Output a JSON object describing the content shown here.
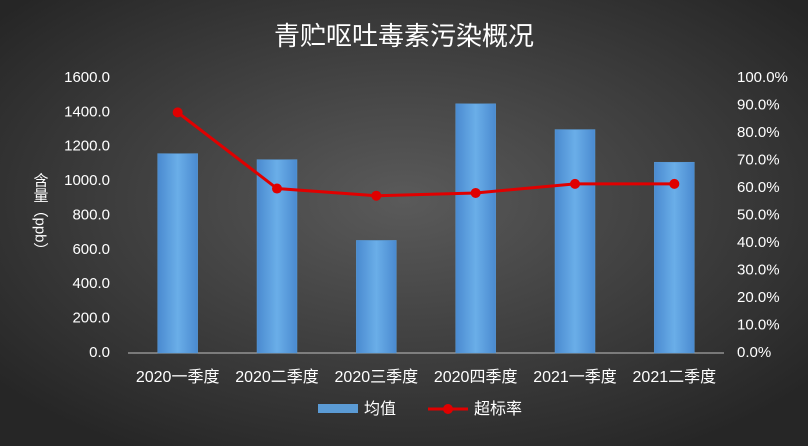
{
  "chart_data": {
    "type": "bar-line",
    "title": "青贮呕吐毒素污染概况",
    "y_label": "含量（ppb）",
    "categories": [
      "2020一季度",
      "2020二季度",
      "2020三季度",
      "2020四季度",
      "2021一季度",
      "2021二季度"
    ],
    "series": [
      {
        "name": "均值",
        "type": "bar",
        "color": "#5b9bd5",
        "values": [
          1160,
          1125,
          655,
          1450,
          1300,
          1110
        ]
      },
      {
        "name": "超标率",
        "type": "line",
        "axis": "y2",
        "color": "#e00000",
        "values": [
          87.5,
          59.8,
          57.2,
          58.2,
          61.5,
          61.5
        ]
      }
    ],
    "ylim": [
      0,
      1600
    ],
    "yticks": [
      {
        "value": 0,
        "label": "0.0"
      },
      {
        "value": 200,
        "label": "200.0"
      },
      {
        "value": 400,
        "label": "400.0"
      },
      {
        "value": 600,
        "label": "600.0"
      },
      {
        "value": 800,
        "label": "800.0"
      },
      {
        "value": 1000,
        "label": "1000.0"
      },
      {
        "value": 1200,
        "label": "1200.0"
      },
      {
        "value": 1400,
        "label": "1400.0"
      },
      {
        "value": 1600,
        "label": "1600.0"
      }
    ],
    "y2lim": [
      0,
      100
    ],
    "y2ticks": [
      {
        "value": 0,
        "label": "0.0%"
      },
      {
        "value": 10,
        "label": "10.0%"
      },
      {
        "value": 20,
        "label": "20.0%"
      },
      {
        "value": 30,
        "label": "30.0%"
      },
      {
        "value": 40,
        "label": "40.0%"
      },
      {
        "value": 50,
        "label": "50.0%"
      },
      {
        "value": 60,
        "label": "60.0%"
      },
      {
        "value": 70,
        "label": "70.0%"
      },
      {
        "value": 80,
        "label": "80.0%"
      },
      {
        "value": 90,
        "label": "90.0%"
      },
      {
        "value": 100,
        "label": "100.0%"
      }
    ]
  }
}
